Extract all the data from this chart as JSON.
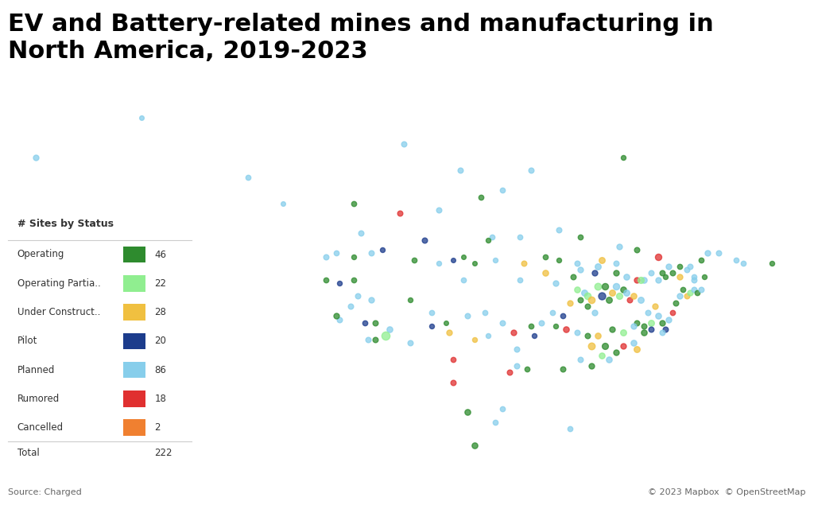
{
  "title": "EV and Battery-related mines and manufacturing in\nNorth America, 2019-2023",
  "title_fontsize": 22,
  "title_fontweight": "bold",
  "background_color": "#ffffff",
  "source_text": "Source: Charged",
  "copyright_text": "© 2023 Mapbox  © OpenStreetMap",
  "legend_title": "# Sites by Status",
  "legend_items": [
    {
      "label": "Operating",
      "color": "#2e8b2e",
      "count": 46
    },
    {
      "label": "Operating Partia..",
      "color": "#90ee90",
      "count": 22
    },
    {
      "label": "Under Construct..",
      "color": "#f0c040",
      "count": 28
    },
    {
      "label": "Pilot",
      "color": "#1c3c8c",
      "count": 20
    },
    {
      "label": "Planned",
      "color": "#87ceeb",
      "count": 86
    },
    {
      "label": "Rumored",
      "color": "#e03030",
      "count": 18
    },
    {
      "label": "Cancelled",
      "color": "#f08030",
      "count": 2
    }
  ],
  "legend_total": 222,
  "sites": [
    {
      "lon": -165.0,
      "lat": 62.0,
      "color": "#87ceeb",
      "size": 60
    },
    {
      "lon": -150.0,
      "lat": 68.0,
      "color": "#87ceeb",
      "size": 40
    },
    {
      "lon": -135.0,
      "lat": 59.0,
      "color": "#87ceeb",
      "size": 50
    },
    {
      "lon": -130.0,
      "lat": 55.0,
      "color": "#87ceeb",
      "size": 40
    },
    {
      "lon": -119.0,
      "lat": 50.5,
      "color": "#87ceeb",
      "size": 55
    },
    {
      "lon": -82.0,
      "lat": 62.0,
      "color": "#2e8b2e",
      "size": 45
    },
    {
      "lon": -77.0,
      "lat": 47.0,
      "color": "#e03030",
      "size": 80
    },
    {
      "lon": -70.0,
      "lat": 47.5,
      "color": "#87ceeb",
      "size": 60
    },
    {
      "lon": -65.0,
      "lat": 46.0,
      "color": "#87ceeb",
      "size": 50
    },
    {
      "lon": -61.0,
      "lat": 46.0,
      "color": "#2e8b2e",
      "size": 45
    },
    {
      "lon": -124.0,
      "lat": 47.0,
      "color": "#87ceeb",
      "size": 55
    },
    {
      "lon": -122.5,
      "lat": 47.5,
      "color": "#87ceeb",
      "size": 50
    },
    {
      "lon": -120.0,
      "lat": 47.0,
      "color": "#2e8b2e",
      "size": 45
    },
    {
      "lon": -117.5,
      "lat": 47.5,
      "color": "#87ceeb",
      "size": 55
    },
    {
      "lon": -116.0,
      "lat": 48.0,
      "color": "#1c3c8c",
      "size": 45
    },
    {
      "lon": -111.5,
      "lat": 46.5,
      "color": "#2e8b2e",
      "size": 50
    },
    {
      "lon": -108.0,
      "lat": 46.0,
      "color": "#87ceeb",
      "size": 45
    },
    {
      "lon": -106.0,
      "lat": 46.5,
      "color": "#1c3c8c",
      "size": 40
    },
    {
      "lon": -104.5,
      "lat": 47.0,
      "color": "#2e8b2e",
      "size": 40
    },
    {
      "lon": -100.0,
      "lat": 46.5,
      "color": "#87ceeb",
      "size": 45
    },
    {
      "lon": -96.0,
      "lat": 46.0,
      "color": "#f0c040",
      "size": 55
    },
    {
      "lon": -93.0,
      "lat": 47.0,
      "color": "#2e8b2e",
      "size": 50
    },
    {
      "lon": -91.0,
      "lat": 46.5,
      "color": "#2e8b2e",
      "size": 45
    },
    {
      "lon": -88.5,
      "lat": 46.0,
      "color": "#87ceeb",
      "size": 55
    },
    {
      "lon": -85.0,
      "lat": 46.5,
      "color": "#f0c040",
      "size": 70
    },
    {
      "lon": -83.0,
      "lat": 46.0,
      "color": "#87ceeb",
      "size": 55
    },
    {
      "lon": -80.0,
      "lat": 43.5,
      "color": "#e03030",
      "size": 60
    },
    {
      "lon": -76.0,
      "lat": 44.0,
      "color": "#2e8b2e",
      "size": 45
    },
    {
      "lon": -74.0,
      "lat": 45.5,
      "color": "#2e8b2e",
      "size": 50
    },
    {
      "lon": -73.0,
      "lat": 45.0,
      "color": "#87ceeb",
      "size": 55
    },
    {
      "lon": -72.0,
      "lat": 44.0,
      "color": "#87ceeb",
      "size": 50
    },
    {
      "lon": -70.5,
      "lat": 44.0,
      "color": "#2e8b2e",
      "size": 45
    },
    {
      "lon": -124.0,
      "lat": 43.5,
      "color": "#2e8b2e",
      "size": 50
    },
    {
      "lon": -122.0,
      "lat": 43.0,
      "color": "#1c3c8c",
      "size": 45
    },
    {
      "lon": -120.0,
      "lat": 43.5,
      "color": "#2e8b2e",
      "size": 50
    },
    {
      "lon": -119.5,
      "lat": 41.0,
      "color": "#87ceeb",
      "size": 55
    },
    {
      "lon": -117.5,
      "lat": 40.5,
      "color": "#87ceeb",
      "size": 60
    },
    {
      "lon": -117.0,
      "lat": 37.0,
      "color": "#2e8b2e",
      "size": 55
    },
    {
      "lon": -115.0,
      "lat": 36.0,
      "color": "#87ceeb",
      "size": 65
    },
    {
      "lon": -112.0,
      "lat": 34.0,
      "color": "#87ceeb",
      "size": 55
    },
    {
      "lon": -112.0,
      "lat": 40.5,
      "color": "#2e8b2e",
      "size": 45
    },
    {
      "lon": -109.0,
      "lat": 38.5,
      "color": "#87ceeb",
      "size": 50
    },
    {
      "lon": -109.0,
      "lat": 36.5,
      "color": "#1c3c8c",
      "size": 45
    },
    {
      "lon": -107.0,
      "lat": 37.0,
      "color": "#2e8b2e",
      "size": 40
    },
    {
      "lon": -106.5,
      "lat": 35.5,
      "color": "#f0c040",
      "size": 60
    },
    {
      "lon": -104.0,
      "lat": 38.0,
      "color": "#87ceeb",
      "size": 55
    },
    {
      "lon": -101.5,
      "lat": 38.5,
      "color": "#87ceeb",
      "size": 50
    },
    {
      "lon": -101.0,
      "lat": 35.0,
      "color": "#87ceeb",
      "size": 45
    },
    {
      "lon": -99.0,
      "lat": 37.0,
      "color": "#87ceeb",
      "size": 55
    },
    {
      "lon": -97.5,
      "lat": 35.5,
      "color": "#e03030",
      "size": 60
    },
    {
      "lon": -97.0,
      "lat": 33.0,
      "color": "#87ceeb",
      "size": 55
    },
    {
      "lon": -95.0,
      "lat": 36.5,
      "color": "#2e8b2e",
      "size": 50
    },
    {
      "lon": -94.5,
      "lat": 35.0,
      "color": "#1c3c8c",
      "size": 45
    },
    {
      "lon": -93.5,
      "lat": 37.0,
      "color": "#87ceeb",
      "size": 55
    },
    {
      "lon": -92.0,
      "lat": 38.5,
      "color": "#87ceeb",
      "size": 50
    },
    {
      "lon": -91.5,
      "lat": 36.5,
      "color": "#2e8b2e",
      "size": 45
    },
    {
      "lon": -90.5,
      "lat": 38.0,
      "color": "#1c3c8c",
      "size": 50
    },
    {
      "lon": -90.0,
      "lat": 36.0,
      "color": "#e03030",
      "size": 65
    },
    {
      "lon": -89.5,
      "lat": 40.0,
      "color": "#f0c040",
      "size": 60
    },
    {
      "lon": -88.5,
      "lat": 42.0,
      "color": "#90ee90",
      "size": 65
    },
    {
      "lon": -88.0,
      "lat": 40.5,
      "color": "#2e8b2e",
      "size": 55
    },
    {
      "lon": -87.5,
      "lat": 41.5,
      "color": "#87ceeb",
      "size": 70
    },
    {
      "lon": -87.0,
      "lat": 41.0,
      "color": "#90ee90",
      "size": 85
    },
    {
      "lon": -87.0,
      "lat": 39.5,
      "color": "#2e8b2e",
      "size": 55
    },
    {
      "lon": -86.5,
      "lat": 40.5,
      "color": "#f0c040",
      "size": 85
    },
    {
      "lon": -86.0,
      "lat": 38.5,
      "color": "#87ceeb",
      "size": 60
    },
    {
      "lon": -85.5,
      "lat": 42.5,
      "color": "#90ee90",
      "size": 90
    },
    {
      "lon": -85.0,
      "lat": 41.0,
      "color": "#1c3c8c",
      "size": 100
    },
    {
      "lon": -84.5,
      "lat": 42.5,
      "color": "#2e8b2e",
      "size": 80
    },
    {
      "lon": -84.0,
      "lat": 40.5,
      "color": "#2e8b2e",
      "size": 70
    },
    {
      "lon": -83.5,
      "lat": 41.5,
      "color": "#f0c040",
      "size": 70
    },
    {
      "lon": -83.0,
      "lat": 42.5,
      "color": "#87ceeb",
      "size": 80
    },
    {
      "lon": -82.5,
      "lat": 41.0,
      "color": "#90ee90",
      "size": 75
    },
    {
      "lon": -82.0,
      "lat": 42.0,
      "color": "#2e8b2e",
      "size": 65
    },
    {
      "lon": -81.5,
      "lat": 41.5,
      "color": "#87ceeb",
      "size": 70
    },
    {
      "lon": -81.0,
      "lat": 40.5,
      "color": "#e03030",
      "size": 55
    },
    {
      "lon": -80.5,
      "lat": 41.0,
      "color": "#f0c040",
      "size": 65
    },
    {
      "lon": -80.0,
      "lat": 37.0,
      "color": "#2e8b2e",
      "size": 55
    },
    {
      "lon": -79.5,
      "lat": 40.5,
      "color": "#87ceeb",
      "size": 70
    },
    {
      "lon": -79.0,
      "lat": 35.5,
      "color": "#2e8b2e",
      "size": 65
    },
    {
      "lon": -78.5,
      "lat": 38.5,
      "color": "#87ceeb",
      "size": 55
    },
    {
      "lon": -78.0,
      "lat": 37.0,
      "color": "#90ee90",
      "size": 70
    },
    {
      "lon": -77.5,
      "lat": 39.5,
      "color": "#f0c040",
      "size": 60
    },
    {
      "lon": -77.0,
      "lat": 38.0,
      "color": "#87ceeb",
      "size": 65
    },
    {
      "lon": -76.5,
      "lat": 37.0,
      "color": "#2e8b2e",
      "size": 60
    },
    {
      "lon": -76.0,
      "lat": 36.0,
      "color": "#1c3c8c",
      "size": 55
    },
    {
      "lon": -75.5,
      "lat": 37.5,
      "color": "#87ceeb",
      "size": 60
    },
    {
      "lon": -75.0,
      "lat": 38.5,
      "color": "#e03030",
      "size": 50
    },
    {
      "lon": -74.5,
      "lat": 40.0,
      "color": "#2e8b2e",
      "size": 55
    },
    {
      "lon": -74.0,
      "lat": 41.0,
      "color": "#87ceeb",
      "size": 60
    },
    {
      "lon": -73.5,
      "lat": 42.0,
      "color": "#2e8b2e",
      "size": 50
    },
    {
      "lon": -73.0,
      "lat": 41.0,
      "color": "#f0c040",
      "size": 55
    },
    {
      "lon": -72.5,
      "lat": 41.5,
      "color": "#90ee90",
      "size": 60
    },
    {
      "lon": -72.0,
      "lat": 42.0,
      "color": "#87ceeb",
      "size": 55
    },
    {
      "lon": -71.5,
      "lat": 41.5,
      "color": "#2e8b2e",
      "size": 50
    },
    {
      "lon": -71.0,
      "lat": 42.0,
      "color": "#87ceeb",
      "size": 55
    },
    {
      "lon": -95.5,
      "lat": 30.0,
      "color": "#2e8b2e",
      "size": 50
    },
    {
      "lon": -97.0,
      "lat": 30.5,
      "color": "#87ceeb",
      "size": 55
    },
    {
      "lon": -98.0,
      "lat": 29.5,
      "color": "#e03030",
      "size": 55
    },
    {
      "lon": -86.5,
      "lat": 33.5,
      "color": "#f0c040",
      "size": 90
    },
    {
      "lon": -84.5,
      "lat": 33.5,
      "color": "#2e8b2e",
      "size": 75
    },
    {
      "lon": -84.0,
      "lat": 31.5,
      "color": "#87ceeb",
      "size": 65
    },
    {
      "lon": -82.0,
      "lat": 33.5,
      "color": "#e03030",
      "size": 60
    },
    {
      "lon": -80.5,
      "lat": 34.0,
      "color": "#87ceeb",
      "size": 65
    },
    {
      "lon": -80.0,
      "lat": 33.0,
      "color": "#f0c040",
      "size": 70
    },
    {
      "lon": -90.5,
      "lat": 30.0,
      "color": "#2e8b2e",
      "size": 55
    },
    {
      "lon": -88.0,
      "lat": 31.5,
      "color": "#87ceeb",
      "size": 55
    },
    {
      "lon": -86.5,
      "lat": 30.5,
      "color": "#2e8b2e",
      "size": 60
    },
    {
      "lon": -85.0,
      "lat": 32.0,
      "color": "#90ee90",
      "size": 65
    },
    {
      "lon": -83.0,
      "lat": 32.5,
      "color": "#2e8b2e",
      "size": 60
    },
    {
      "lon": -103.0,
      "lat": 46.0,
      "color": "#2e8b2e",
      "size": 40
    },
    {
      "lon": -115.5,
      "lat": 35.0,
      "color": "#90ee90",
      "size": 130
    },
    {
      "lon": -118.0,
      "lat": 34.5,
      "color": "#87ceeb",
      "size": 55
    },
    {
      "lon": -122.0,
      "lat": 37.5,
      "color": "#87ceeb",
      "size": 55
    },
    {
      "lon": -122.5,
      "lat": 38.0,
      "color": "#2e8b2e",
      "size": 60
    },
    {
      "lon": -104.5,
      "lat": 43.5,
      "color": "#87ceeb",
      "size": 50
    },
    {
      "lon": -96.5,
      "lat": 43.5,
      "color": "#87ceeb",
      "size": 50
    },
    {
      "lon": -85.5,
      "lat": 45.5,
      "color": "#87ceeb",
      "size": 70
    },
    {
      "lon": -93.0,
      "lat": 44.5,
      "color": "#f0c040",
      "size": 65
    },
    {
      "lon": -113.5,
      "lat": 53.5,
      "color": "#e03030",
      "size": 55
    },
    {
      "lon": -110.0,
      "lat": 49.5,
      "color": "#1c3c8c",
      "size": 55
    },
    {
      "lon": -100.5,
      "lat": 50.0,
      "color": "#87ceeb",
      "size": 50
    },
    {
      "lon": -96.5,
      "lat": 50.0,
      "color": "#87ceeb",
      "size": 50
    },
    {
      "lon": -91.0,
      "lat": 51.0,
      "color": "#87ceeb",
      "size": 55
    },
    {
      "lon": -88.0,
      "lat": 50.0,
      "color": "#2e8b2e",
      "size": 50
    },
    {
      "lon": -82.5,
      "lat": 48.5,
      "color": "#87ceeb",
      "size": 60
    },
    {
      "lon": -80.0,
      "lat": 48.0,
      "color": "#2e8b2e",
      "size": 55
    },
    {
      "lon": -79.0,
      "lat": 43.5,
      "color": "#87ceeb",
      "size": 65
    },
    {
      "lon": -76.5,
      "lat": 44.5,
      "color": "#2e8b2e",
      "size": 55
    },
    {
      "lon": -75.5,
      "lat": 45.5,
      "color": "#87ceeb",
      "size": 60
    },
    {
      "lon": -72.5,
      "lat": 45.5,
      "color": "#87ceeb",
      "size": 55
    },
    {
      "lon": -71.0,
      "lat": 46.5,
      "color": "#2e8b2e",
      "size": 50
    },
    {
      "lon": -68.5,
      "lat": 47.5,
      "color": "#87ceeb",
      "size": 55
    },
    {
      "lon": -66.0,
      "lat": 46.5,
      "color": "#87ceeb",
      "size": 50
    },
    {
      "lon": -101.0,
      "lat": 49.5,
      "color": "#2e8b2e",
      "size": 45
    },
    {
      "lon": -108.0,
      "lat": 54.0,
      "color": "#87ceeb",
      "size": 55
    },
    {
      "lon": -120.0,
      "lat": 55.0,
      "color": "#2e8b2e",
      "size": 50
    },
    {
      "lon": -105.0,
      "lat": 60.0,
      "color": "#87ceeb",
      "size": 55
    },
    {
      "lon": -95.0,
      "lat": 60.0,
      "color": "#87ceeb",
      "size": 55
    },
    {
      "lon": -102.0,
      "lat": 56.0,
      "color": "#2e8b2e",
      "size": 50
    },
    {
      "lon": -99.0,
      "lat": 57.0,
      "color": "#87ceeb",
      "size": 50
    },
    {
      "lon": -113.0,
      "lat": 64.0,
      "color": "#87ceeb",
      "size": 55
    },
    {
      "lon": -103.0,
      "lat": 34.5,
      "color": "#f0c040",
      "size": 45
    },
    {
      "lon": -106.0,
      "lat": 31.5,
      "color": "#e03030",
      "size": 50
    },
    {
      "lon": -106.0,
      "lat": 28.0,
      "color": "#e03030",
      "size": 55
    },
    {
      "lon": -104.0,
      "lat": 23.5,
      "color": "#2e8b2e",
      "size": 65
    },
    {
      "lon": -99.0,
      "lat": 24.0,
      "color": "#87ceeb",
      "size": 50
    },
    {
      "lon": -100.0,
      "lat": 22.0,
      "color": "#87ceeb",
      "size": 50
    },
    {
      "lon": -89.5,
      "lat": 21.0,
      "color": "#87ceeb",
      "size": 50
    },
    {
      "lon": -103.0,
      "lat": 18.5,
      "color": "#2e8b2e",
      "size": 65
    },
    {
      "lon": -87.0,
      "lat": 35.0,
      "color": "#2e8b2e",
      "size": 55
    },
    {
      "lon": -91.5,
      "lat": 43.0,
      "color": "#87ceeb",
      "size": 60
    },
    {
      "lon": -78.0,
      "lat": 44.5,
      "color": "#87ceeb",
      "size": 55
    },
    {
      "lon": -117.0,
      "lat": 34.5,
      "color": "#2e8b2e",
      "size": 55
    },
    {
      "lon": -118.5,
      "lat": 37.0,
      "color": "#1c3c8c",
      "size": 50
    },
    {
      "lon": -120.5,
      "lat": 39.5,
      "color": "#87ceeb",
      "size": 55
    },
    {
      "lon": -89.0,
      "lat": 44.0,
      "color": "#2e8b2e",
      "size": 55
    },
    {
      "lon": -88.0,
      "lat": 45.0,
      "color": "#87ceeb",
      "size": 60
    },
    {
      "lon": -86.0,
      "lat": 44.5,
      "color": "#1c3c8c",
      "size": 60
    },
    {
      "lon": -83.0,
      "lat": 44.5,
      "color": "#2e8b2e",
      "size": 60
    },
    {
      "lon": -81.5,
      "lat": 44.0,
      "color": "#87ceeb",
      "size": 65
    },
    {
      "lon": -79.5,
      "lat": 43.5,
      "color": "#90ee90",
      "size": 75
    },
    {
      "lon": -77.0,
      "lat": 43.5,
      "color": "#87ceeb",
      "size": 60
    },
    {
      "lon": -75.0,
      "lat": 44.5,
      "color": "#2e8b2e",
      "size": 55
    },
    {
      "lon": -74.0,
      "lat": 44.0,
      "color": "#f0c040",
      "size": 60
    },
    {
      "lon": -88.5,
      "lat": 35.5,
      "color": "#87ceeb",
      "size": 55
    },
    {
      "lon": -85.5,
      "lat": 35.0,
      "color": "#f0c040",
      "size": 65
    },
    {
      "lon": -83.5,
      "lat": 36.0,
      "color": "#2e8b2e",
      "size": 60
    },
    {
      "lon": -82.0,
      "lat": 35.5,
      "color": "#90ee90",
      "size": 70
    },
    {
      "lon": -80.5,
      "lat": 36.5,
      "color": "#87ceeb",
      "size": 60
    },
    {
      "lon": -79.0,
      "lat": 36.5,
      "color": "#2e8b2e",
      "size": 55
    },
    {
      "lon": -78.0,
      "lat": 36.0,
      "color": "#1c3c8c",
      "size": 55
    },
    {
      "lon": -76.5,
      "lat": 35.5,
      "color": "#87ceeb",
      "size": 55
    },
    {
      "lon": -72.0,
      "lat": 43.5,
      "color": "#87ceeb",
      "size": 55
    }
  ]
}
